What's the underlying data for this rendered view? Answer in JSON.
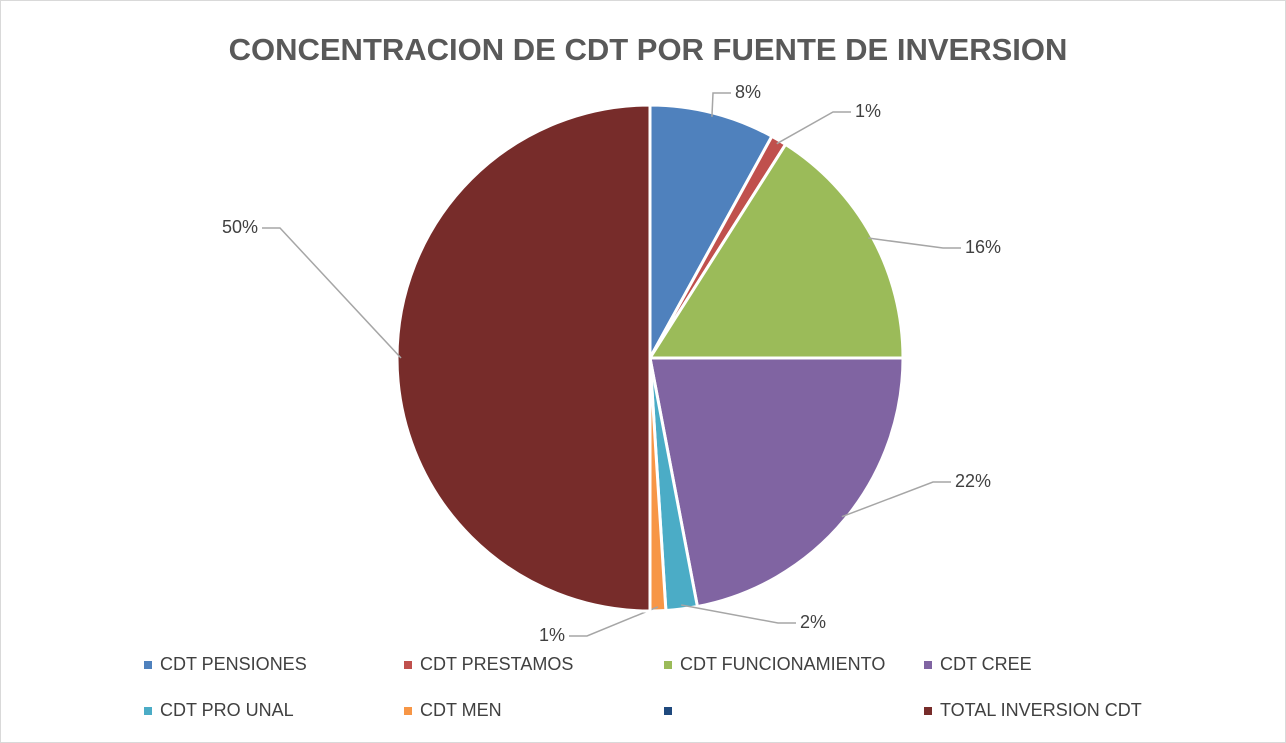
{
  "chart_data": {
    "type": "pie",
    "title": "CONCENTRACION DE CDT POR FUENTE DE INVERSION",
    "categories": [
      "CDT PENSIONES",
      "CDT PRESTAMOS",
      "CDT FUNCIONAMIENTO",
      "CDT CREE",
      "CDT PRO UNAL",
      "CDT MEN",
      null,
      "TOTAL INVERSION CDT"
    ],
    "values": [
      8,
      1,
      16,
      22,
      2,
      1,
      null,
      50
    ],
    "value_labels": [
      "8%",
      "1%",
      "16%",
      "22%",
      "2%",
      "1%",
      null,
      "50%"
    ],
    "colors": [
      "#4f81bd",
      "#c0504d",
      "#9bbb59",
      "#8064a2",
      "#4bacc6",
      "#f79646",
      "#1f497d",
      "#772c2a"
    ],
    "legend": "bottom"
  }
}
